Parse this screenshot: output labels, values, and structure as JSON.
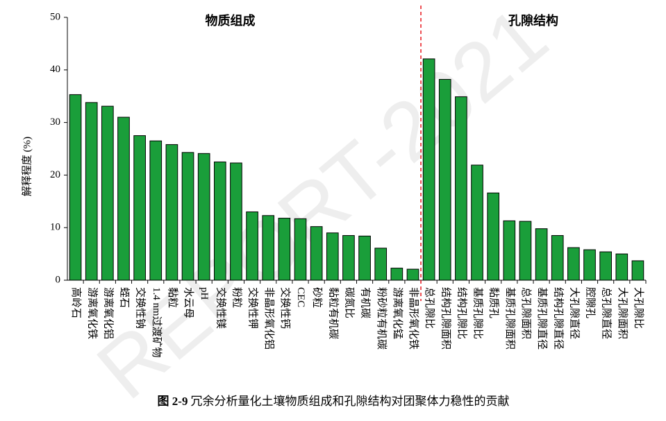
{
  "chart_data": {
    "type": "bar",
    "ylabel": "解释程度 (%)",
    "color": "#1a9e3a",
    "ylim": [
      0,
      50
    ],
    "yticks": [
      0,
      10,
      20,
      30,
      40,
      50
    ],
    "groups": [
      {
        "name": "物质组成",
        "categories": [
          "高岭石",
          "游离氧化铁",
          "游离氧化铝",
          "蛭石",
          "交换性钠",
          "1.4 nm过渡矿物",
          "黏粒",
          "水云母",
          "pH",
          "交换性镁",
          "粉粒",
          "交换性钾",
          "非晶形氧化铝",
          "交换性钙",
          "CEC",
          "砂粒",
          "黏粒有机碳",
          "碳氮比",
          "有机碳",
          "粉砂粒有机碳",
          "游离氧化锰",
          "非晶形氧化铁"
        ],
        "values": [
          35.3,
          33.8,
          33.1,
          31.0,
          27.5,
          26.5,
          25.8,
          24.3,
          24.1,
          22.5,
          22.3,
          13.0,
          12.3,
          11.8,
          11.7,
          10.2,
          9.0,
          8.5,
          8.4,
          6.1,
          2.3,
          2.1
        ]
      },
      {
        "name": "孔隙结构",
        "categories": [
          "总孔隙比",
          "结构孔隙面积",
          "结构孔隙比",
          "基质孔隙比",
          "黏质孔",
          "基质孔隙面积",
          "总孔隙面积",
          "基质孔隙直径",
          "结构孔隙直径",
          "大孔隙直径",
          "腔隙孔",
          "总孔隙直径",
          "大孔隙面积",
          "大孔隙比"
        ],
        "values": [
          42.1,
          38.2,
          34.9,
          21.9,
          16.6,
          11.3,
          11.2,
          9.8,
          8.5,
          6.2,
          5.8,
          5.4,
          5.0,
          3.7
        ]
      }
    ]
  },
  "caption": {
    "label": "图 2-9",
    "text": "冗余分析量化土壤物质组成和孔隙结构对团聚体力稳性的贡献"
  },
  "watermark": "REPORT-2021"
}
